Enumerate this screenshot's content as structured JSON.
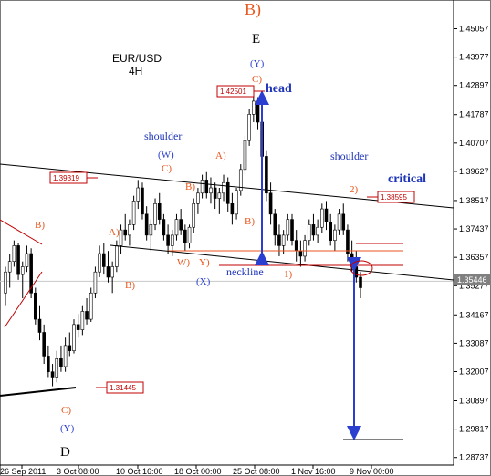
{
  "chart_data": {
    "type": "candlestick",
    "title": "EUR/USD",
    "subtitle": "4H",
    "y_axis": {
      "ylim": [
        1.2845,
        1.4615
      ],
      "ticks": [
        "1.45057",
        "1.43977",
        "1.42897",
        "1.41787",
        "1.40707",
        "1.39627",
        "1.38517",
        "1.37437",
        "1.36357",
        "1.35277",
        "1.34167",
        "1.33087",
        "1.32007",
        "1.30897",
        "1.29817",
        "1.28737"
      ],
      "current_price": "1.35446"
    },
    "x_axis": {
      "ticks": [
        "26 Sep 2011",
        "3 Oct 08:00",
        "10 Oct 16:00",
        "18 Oct 00:00",
        "25 Oct 08:00",
        "1 Nov 16:00",
        "9 Nov 00:00"
      ]
    },
    "price_markers": [
      "1.42501",
      "1.39319",
      "1.38595",
      "1.31445"
    ],
    "wave_labels": {
      "main_b": "B)",
      "main_e": "E",
      "main_d": "D",
      "y_top": "(Y)",
      "c_top": "C)",
      "w_paren": "(W)",
      "c_w": "C)",
      "a_w": "A)",
      "b_w": "B)",
      "a_left": "A)",
      "b_left": "B)",
      "w_small": "W)",
      "y_small": "Y)",
      "x_paren": "(X)",
      "b_head": "B)",
      "b_far_left": "B)",
      "c_bottom": "C)",
      "y_bottom": "(Y)",
      "one": "1)",
      "two": "2)"
    },
    "annotations": {
      "head": "head",
      "shoulder_left": "shoulder",
      "shoulder_right": "shoulder",
      "neckline": "neckline",
      "critical": "critical"
    },
    "colors": {
      "up_candle": "#ffffff",
      "down_candle": "#000000",
      "wick": "#000000",
      "trendline": "#000000",
      "arrow": "#2a3fd0",
      "wave_orange": "#e8561c",
      "wave_blue": "#2a3fd0",
      "marker_red": "#c00000",
      "price_line": "#c8c8c8"
    },
    "series": [
      {
        "values": [
          [
            1.35,
            1.36,
            1.345,
            1.358
          ],
          [
            1.358,
            1.365,
            1.352,
            1.362
          ],
          [
            1.362,
            1.37,
            1.36,
            1.368
          ],
          [
            1.368,
            1.369,
            1.355,
            1.357
          ],
          [
            1.357,
            1.362,
            1.348,
            1.36
          ],
          [
            1.36,
            1.368,
            1.358,
            1.365
          ],
          [
            1.365,
            1.367,
            1.348,
            1.35
          ],
          [
            1.35,
            1.352,
            1.338,
            1.34
          ],
          [
            1.34,
            1.345,
            1.332,
            1.335
          ],
          [
            1.335,
            1.338,
            1.323,
            1.326
          ],
          [
            1.326,
            1.33,
            1.318,
            1.32
          ],
          [
            1.32,
            1.323,
            1.3145,
            1.318
          ],
          [
            1.318,
            1.328,
            1.316,
            1.325
          ],
          [
            1.325,
            1.33,
            1.32,
            1.322
          ],
          [
            1.322,
            1.333,
            1.32,
            1.33
          ],
          [
            1.33,
            1.335,
            1.326,
            1.328
          ],
          [
            1.328,
            1.34,
            1.327,
            1.338
          ],
          [
            1.338,
            1.342,
            1.333,
            1.336
          ],
          [
            1.336,
            1.345,
            1.334,
            1.343
          ],
          [
            1.343,
            1.348,
            1.338,
            1.34
          ],
          [
            1.34,
            1.352,
            1.339,
            1.35
          ],
          [
            1.35,
            1.36,
            1.348,
            1.358
          ],
          [
            1.358,
            1.368,
            1.356,
            1.365
          ],
          [
            1.365,
            1.369,
            1.357,
            1.36
          ],
          [
            1.36,
            1.366,
            1.354,
            1.356
          ],
          [
            1.356,
            1.362,
            1.35,
            1.36
          ],
          [
            1.36,
            1.37,
            1.358,
            1.368
          ],
          [
            1.368,
            1.376,
            1.365,
            1.374
          ],
          [
            1.374,
            1.38,
            1.37,
            1.372
          ],
          [
            1.372,
            1.378,
            1.368,
            1.376
          ],
          [
            1.376,
            1.387,
            1.374,
            1.385
          ],
          [
            1.385,
            1.393,
            1.382,
            1.39
          ],
          [
            1.39,
            1.392,
            1.378,
            1.38
          ],
          [
            1.38,
            1.383,
            1.37,
            1.372
          ],
          [
            1.372,
            1.378,
            1.366,
            1.376
          ],
          [
            1.376,
            1.386,
            1.374,
            1.384
          ],
          [
            1.384,
            1.388,
            1.376,
            1.378
          ],
          [
            1.378,
            1.38,
            1.37,
            1.372
          ],
          [
            1.372,
            1.376,
            1.365,
            1.368
          ],
          [
            1.368,
            1.374,
            1.364,
            1.372
          ],
          [
            1.372,
            1.38,
            1.37,
            1.378
          ],
          [
            1.378,
            1.382,
            1.372,
            1.374
          ],
          [
            1.374,
            1.376,
            1.366,
            1.369
          ],
          [
            1.369,
            1.376,
            1.367,
            1.375
          ],
          [
            1.375,
            1.386,
            1.373,
            1.384
          ],
          [
            1.384,
            1.39,
            1.38,
            1.388
          ],
          [
            1.388,
            1.395,
            1.386,
            1.393
          ],
          [
            1.393,
            1.396,
            1.386,
            1.388
          ],
          [
            1.388,
            1.394,
            1.384,
            1.39
          ],
          [
            1.39,
            1.392,
            1.382,
            1.386
          ],
          [
            1.386,
            1.39,
            1.38,
            1.388
          ],
          [
            1.388,
            1.395,
            1.385,
            1.392
          ],
          [
            1.392,
            1.394,
            1.381,
            1.384
          ],
          [
            1.384,
            1.388,
            1.376,
            1.38
          ],
          [
            1.38,
            1.39,
            1.378,
            1.389
          ],
          [
            1.389,
            1.399,
            1.387,
            1.397
          ],
          [
            1.397,
            1.41,
            1.395,
            1.408
          ],
          [
            1.408,
            1.42,
            1.406,
            1.418
          ],
          [
            1.418,
            1.425,
            1.415,
            1.423
          ],
          [
            1.423,
            1.4245,
            1.412,
            1.415
          ],
          [
            1.415,
            1.418,
            1.4,
            1.402
          ],
          [
            1.402,
            1.404,
            1.385,
            1.388
          ],
          [
            1.388,
            1.392,
            1.376,
            1.38
          ],
          [
            1.38,
            1.382,
            1.368,
            1.372
          ],
          [
            1.372,
            1.376,
            1.364,
            1.368
          ],
          [
            1.368,
            1.374,
            1.365,
            1.372
          ],
          [
            1.372,
            1.38,
            1.37,
            1.378
          ],
          [
            1.378,
            1.38,
            1.368,
            1.37
          ],
          [
            1.37,
            1.374,
            1.362,
            1.366
          ],
          [
            1.366,
            1.37,
            1.36,
            1.364
          ],
          [
            1.364,
            1.372,
            1.362,
            1.37
          ],
          [
            1.37,
            1.378,
            1.368,
            1.376
          ],
          [
            1.376,
            1.38,
            1.37,
            1.372
          ],
          [
            1.372,
            1.378,
            1.369,
            1.375
          ],
          [
            1.375,
            1.384,
            1.373,
            1.382
          ],
          [
            1.382,
            1.385,
            1.374,
            1.377
          ],
          [
            1.377,
            1.38,
            1.368,
            1.37
          ],
          [
            1.37,
            1.376,
            1.366,
            1.374
          ],
          [
            1.374,
            1.382,
            1.372,
            1.38
          ],
          [
            1.38,
            1.384,
            1.372,
            1.374
          ],
          [
            1.374,
            1.376,
            1.362,
            1.365
          ],
          [
            1.365,
            1.37,
            1.358,
            1.36
          ],
          [
            1.36,
            1.366,
            1.354,
            1.356
          ],
          [
            1.356,
            1.358,
            1.348,
            1.352
          ]
        ]
      }
    ]
  }
}
